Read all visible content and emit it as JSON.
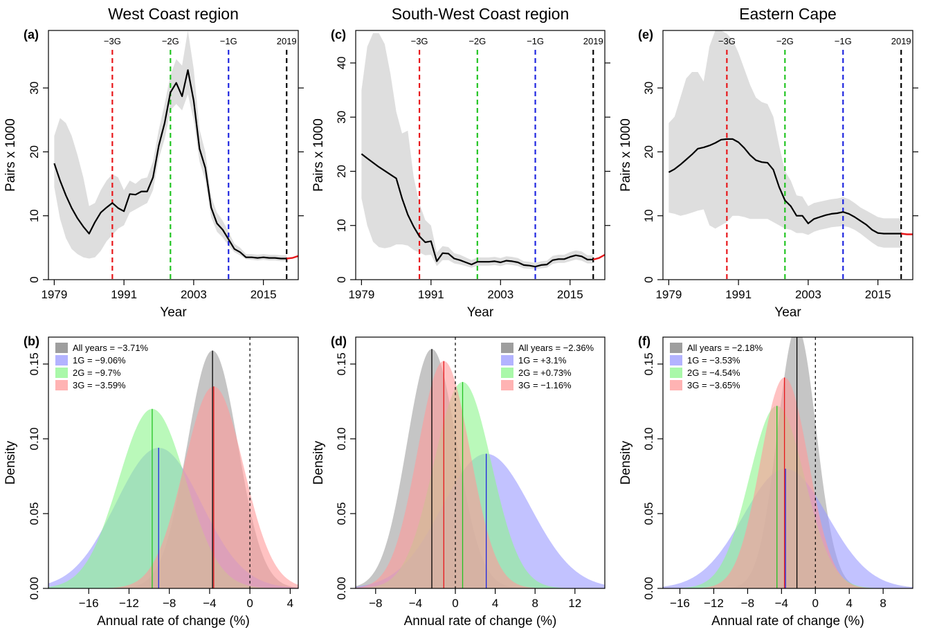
{
  "colors": {
    "red": "#e8161a",
    "green": "#22c422",
    "blue": "#1f26e0",
    "black": "#000000",
    "ribbon": "#dedede",
    "dens_all": "#9e9e9e",
    "dens_1g": "#9999ff",
    "dens_2g": "#8cf58c",
    "dens_3g": "#ff9a9a"
  },
  "chart_data": [
    {
      "panel": "(a)",
      "type": "line",
      "title": "West Coast region",
      "xlabel": "Year",
      "ylabel": "Pairs x 1000",
      "xlim": [
        1978,
        2021
      ],
      "ylim": [
        0,
        39
      ],
      "xticks": [
        1979,
        1991,
        2003,
        2015
      ],
      "yticks": [
        0,
        10,
        20,
        30
      ],
      "vlines": [
        {
          "label": "−3G",
          "x": 1989,
          "color": "red"
        },
        {
          "label": "−2G",
          "x": 1999,
          "color": "green"
        },
        {
          "label": "−1G",
          "x": 2009,
          "color": "blue"
        },
        {
          "label": "2019",
          "x": 2019,
          "color": "black"
        }
      ],
      "x": [
        1979,
        1980,
        1981,
        1982,
        1983,
        1984,
        1985,
        1986,
        1987,
        1988,
        1989,
        1990,
        1991,
        1992,
        1993,
        1994,
        1995,
        1996,
        1997,
        1998,
        1999,
        2000,
        2001,
        2002,
        2003,
        2004,
        2005,
        2006,
        2007,
        2008,
        2009,
        2010,
        2011,
        2012,
        2013,
        2014,
        2015,
        2016,
        2017,
        2018,
        2019
      ],
      "y": [
        18.2,
        15.5,
        13.2,
        11.2,
        9.6,
        8.3,
        7.2,
        9.0,
        10.5,
        11.3,
        12.0,
        11.2,
        10.7,
        13.4,
        13.3,
        13.8,
        13.8,
        16.0,
        21.0,
        24.5,
        29.3,
        30.8,
        28.7,
        32.8,
        28.0,
        20.5,
        17.5,
        11.3,
        8.8,
        7.8,
        6.3,
        4.8,
        4.3,
        3.5,
        3.5,
        3.4,
        3.5,
        3.4,
        3.4,
        3.3,
        3.3
      ],
      "y_low": [
        14.5,
        9.5,
        6.5,
        4.8,
        4.0,
        3.5,
        3.3,
        3.5,
        4.5,
        6.0,
        7.0,
        8.0,
        8.5,
        10.5,
        11.0,
        11.5,
        12.0,
        14.0,
        19.0,
        22.0,
        26.5,
        27.5,
        26.5,
        29.0,
        25.0,
        18.5,
        15.5,
        9.8,
        7.5,
        6.6,
        5.3,
        4.3,
        3.8,
        3.2,
        3.1,
        3.0,
        3.1,
        3.0,
        3.0,
        2.9,
        2.9
      ],
      "y_high": [
        22.5,
        25.3,
        24.5,
        22.5,
        19.5,
        16.0,
        11.5,
        12.0,
        14.0,
        15.5,
        16.5,
        16.0,
        14.0,
        15.5,
        15.0,
        15.8,
        16.0,
        18.5,
        23.5,
        27.5,
        32.0,
        34.5,
        33.5,
        39.0,
        33.0,
        23.5,
        20.0,
        13.0,
        10.5,
        9.2,
        7.5,
        5.6,
        5.0,
        4.0,
        4.0,
        3.9,
        4.0,
        3.9,
        3.9,
        3.8,
        3.8
      ],
      "projection": {
        "x": [
          2019,
          2020,
          2021
        ],
        "y": [
          3.3,
          3.4,
          3.7
        ]
      }
    },
    {
      "panel": "(c)",
      "type": "line",
      "title": "South-West Coast region",
      "xlabel": "Year",
      "ylabel": "Pairs x 1000",
      "xlim": [
        1978,
        2021
      ],
      "ylim": [
        0,
        46
      ],
      "xticks": [
        1979,
        1991,
        2003,
        2015
      ],
      "yticks": [
        0,
        10,
        20,
        30,
        40
      ],
      "vlines": [
        {
          "label": "−3G",
          "x": 1989,
          "color": "red"
        },
        {
          "label": "−2G",
          "x": 1999,
          "color": "green"
        },
        {
          "label": "−1G",
          "x": 2009,
          "color": "blue"
        },
        {
          "label": "2019",
          "x": 2019,
          "color": "black"
        }
      ],
      "x": [
        1979,
        1980,
        1981,
        1982,
        1983,
        1984,
        1985,
        1986,
        1987,
        1988,
        1989,
        1990,
        1991,
        1992,
        1993,
        1994,
        1995,
        1996,
        1997,
        1998,
        1999,
        2000,
        2001,
        2002,
        2003,
        2004,
        2005,
        2006,
        2007,
        2008,
        2009,
        2010,
        2011,
        2012,
        2013,
        2014,
        2015,
        2016,
        2017,
        2018,
        2019
      ],
      "y": [
        23.2,
        22.4,
        21.6,
        20.8,
        20.1,
        19.4,
        18.7,
        15.0,
        12.0,
        9.8,
        8.0,
        6.9,
        7.1,
        3.4,
        4.9,
        4.8,
        3.9,
        3.6,
        3.2,
        2.8,
        3.3,
        3.3,
        3.3,
        3.4,
        3.2,
        3.5,
        3.4,
        3.2,
        2.7,
        2.6,
        2.4,
        2.7,
        2.8,
        3.6,
        3.8,
        3.8,
        4.2,
        4.5,
        4.3,
        3.7,
        3.7
      ],
      "y_low": [
        15.0,
        10.0,
        7.0,
        6.0,
        5.8,
        6.0,
        6.5,
        6.5,
        6.3,
        5.5,
        5.0,
        4.5,
        4.6,
        2.5,
        3.6,
        3.6,
        3.0,
        2.8,
        2.5,
        2.2,
        2.6,
        2.6,
        2.6,
        2.7,
        2.5,
        2.8,
        2.7,
        2.5,
        2.1,
        2.0,
        1.9,
        2.1,
        2.2,
        2.9,
        3.1,
        3.1,
        3.4,
        3.7,
        3.5,
        3.0,
        3.0
      ],
      "y_high": [
        35.0,
        43.0,
        45.5,
        45.5,
        43.5,
        38.0,
        31.0,
        27.0,
        27.5,
        19.0,
        14.0,
        11.0,
        10.0,
        5.0,
        6.2,
        6.0,
        4.9,
        4.6,
        4.1,
        3.6,
        4.1,
        4.1,
        4.1,
        4.2,
        4.0,
        4.3,
        4.2,
        4.0,
        3.4,
        3.3,
        3.1,
        3.4,
        3.5,
        4.4,
        4.6,
        4.6,
        5.1,
        5.4,
        5.2,
        4.5,
        4.5
      ],
      "projection": {
        "x": [
          2019,
          2020,
          2021
        ],
        "y": [
          3.7,
          4.0,
          4.6
        ]
      }
    },
    {
      "panel": "(e)",
      "type": "line",
      "title": "Eastern Cape",
      "xlabel": "Year",
      "ylabel": "Pairs x 1000",
      "xlim": [
        1978,
        2021
      ],
      "ylim": [
        0,
        39
      ],
      "xticks": [
        1979,
        1991,
        2003,
        2015
      ],
      "yticks": [
        0,
        10,
        20,
        30
      ],
      "vlines": [
        {
          "label": "−3G",
          "x": 1989,
          "color": "red"
        },
        {
          "label": "−2G",
          "x": 1999,
          "color": "green"
        },
        {
          "label": "−1G",
          "x": 2009,
          "color": "blue"
        },
        {
          "label": "2019",
          "x": 2019,
          "color": "black"
        }
      ],
      "x": [
        1979,
        1980,
        1981,
        1982,
        1983,
        1984,
        1985,
        1986,
        1987,
        1988,
        1989,
        1990,
        1991,
        1992,
        1993,
        1994,
        1995,
        1996,
        1997,
        1998,
        1999,
        2000,
        2001,
        2002,
        2003,
        2004,
        2005,
        2006,
        2007,
        2008,
        2009,
        2010,
        2011,
        2012,
        2013,
        2014,
        2015,
        2016,
        2017,
        2018,
        2019
      ],
      "y": [
        16.8,
        17.3,
        18.0,
        18.8,
        19.6,
        20.5,
        20.7,
        21.0,
        21.4,
        21.9,
        22.0,
        22.0,
        21.5,
        20.6,
        19.5,
        18.7,
        18.4,
        18.3,
        17.2,
        14.5,
        12.4,
        11.5,
        10.0,
        10.0,
        8.8,
        9.5,
        9.8,
        10.1,
        10.3,
        10.4,
        10.6,
        10.3,
        9.8,
        9.2,
        8.6,
        7.8,
        7.3,
        7.2,
        7.2,
        7.2,
        7.2
      ],
      "y_low": [
        10.5,
        10.3,
        10.0,
        10.2,
        10.5,
        10.8,
        11.0,
        8.5,
        8.0,
        8.5,
        9.0,
        10.0,
        10.0,
        9.8,
        9.5,
        9.5,
        9.5,
        9.5,
        9.0,
        8.5,
        8.0,
        7.8,
        7.3,
        7.3,
        7.0,
        7.5,
        7.8,
        8.0,
        8.2,
        8.3,
        8.4,
        8.2,
        7.8,
        7.2,
        6.5,
        5.8,
        5.2,
        5.0,
        5.0,
        5.0,
        5.0
      ],
      "y_high": [
        24.5,
        25.5,
        28.5,
        31.5,
        32.5,
        32.5,
        31.0,
        36.5,
        39.0,
        39.0,
        38.5,
        37.5,
        35.5,
        33.0,
        30.5,
        28.5,
        27.8,
        27.5,
        25.5,
        21.0,
        17.0,
        15.5,
        13.2,
        13.0,
        11.5,
        12.0,
        12.2,
        12.4,
        12.6,
        12.7,
        12.9,
        12.6,
        12.0,
        11.3,
        10.8,
        10.3,
        9.8,
        9.6,
        9.6,
        9.6,
        9.6
      ],
      "projection": {
        "x": [
          2019,
          2020,
          2021
        ],
        "y": [
          7.2,
          7.1,
          7.1
        ]
      }
    },
    {
      "panel": "(b)",
      "type": "area",
      "xlabel": "Annual rate of change (%)",
      "ylabel": "Density",
      "xlim": [
        -20,
        4.8
      ],
      "ylim": [
        0,
        0.168
      ],
      "xticks": [
        -16,
        -12,
        -8,
        -4,
        0,
        4
      ],
      "yticks": [
        0.0,
        0.05,
        0.1,
        0.15
      ],
      "ytick_labels": [
        "0.00",
        "0.05",
        "0.10",
        "0.15"
      ],
      "legend_position": "top-left",
      "series": [
        {
          "key": "all",
          "name": "All years = −3.71%",
          "mean": -3.71,
          "peak": 0.159
        },
        {
          "key": "1g",
          "name": "1G = −9.06%",
          "mean": -9.06,
          "peak": 0.094
        },
        {
          "key": "2g",
          "name": "2G = −9.7%",
          "mean": -9.7,
          "peak": 0.12
        },
        {
          "key": "3g",
          "name": "3G = −3.59%",
          "mean": -3.59,
          "peak": 0.135
        }
      ]
    },
    {
      "panel": "(d)",
      "type": "area",
      "xlabel": "Annual rate of change (%)",
      "ylabel": "Density",
      "xlim": [
        -10,
        15
      ],
      "ylim": [
        0,
        0.168
      ],
      "xticks": [
        -8,
        -4,
        0,
        4,
        8,
        12
      ],
      "yticks": [
        0.0,
        0.05,
        0.1,
        0.15
      ],
      "ytick_labels": [
        "0.00",
        "0.05",
        "0.10",
        "0.15"
      ],
      "legend_position": "top-right",
      "series": [
        {
          "key": "all",
          "name": "All years = −2.36%",
          "mean": -2.36,
          "peak": 0.16
        },
        {
          "key": "1g",
          "name": "1G = +3.1%",
          "mean": 3.1,
          "peak": 0.09
        },
        {
          "key": "2g",
          "name": "2G = +0.73%",
          "mean": 0.73,
          "peak": 0.138
        },
        {
          "key": "3g",
          "name": "3G = −1.16%",
          "mean": -1.16,
          "peak": 0.152
        }
      ]
    },
    {
      "panel": "(f)",
      "type": "area",
      "xlabel": "Annual rate of change (%)",
      "ylabel": "Density",
      "xlim": [
        -18,
        11.5
      ],
      "ylim": [
        0,
        0.168
      ],
      "xticks": [
        -16,
        -12,
        -8,
        -4,
        0,
        4,
        8
      ],
      "yticks": [
        0.0,
        0.05,
        0.1,
        0.15
      ],
      "ytick_labels": [
        "0.00",
        "0.05",
        "0.10",
        "0.15"
      ],
      "legend_position": "top-left",
      "series": [
        {
          "key": "all",
          "name": "All years = −2.18%",
          "mean": -2.18,
          "peak": 0.175
        },
        {
          "key": "1g",
          "name": "1G = −3.53%",
          "mean": -3.53,
          "peak": 0.08
        },
        {
          "key": "2g",
          "name": "2G = −4.54%",
          "mean": -4.54,
          "peak": 0.122
        },
        {
          "key": "3g",
          "name": "3G = −3.65%",
          "mean": -3.65,
          "peak": 0.141
        }
      ]
    }
  ]
}
